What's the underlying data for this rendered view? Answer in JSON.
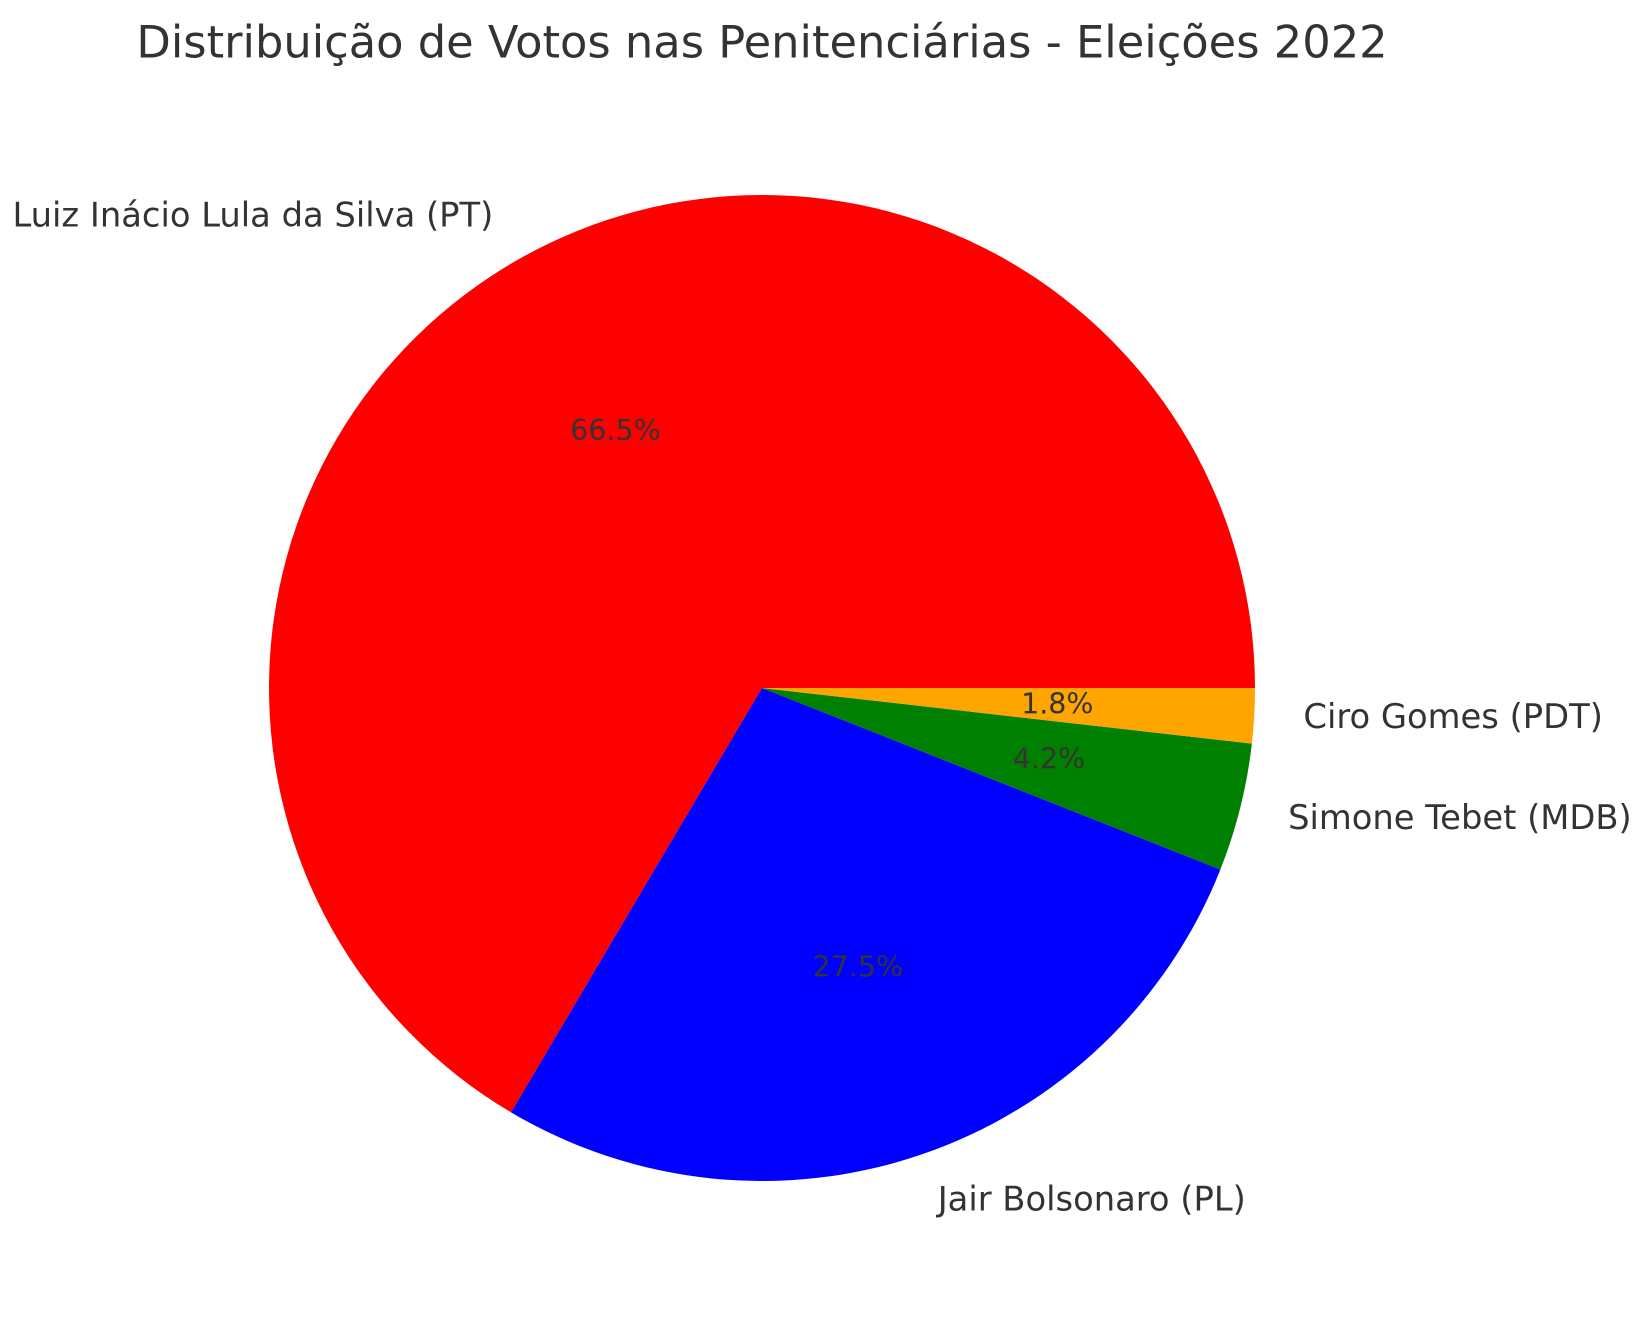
{
  "title": "Distribuição de Votos nas Penitenciárias - Eleições 2022",
  "colors": {
    "background": "#ffffff",
    "text": "#333333"
  },
  "chart_data": {
    "type": "pie",
    "title": "Distribuição de Votos nas Penitenciárias - Eleições 2022",
    "slices": [
      {
        "label": "Luiz Inácio Lula da Silva (PT)",
        "value": 66.5,
        "pct_label": "66.5%",
        "color": "#ff0000"
      },
      {
        "label": "Jair Bolsonaro (PL)",
        "value": 27.5,
        "pct_label": "27.5%",
        "color": "#0000ff"
      },
      {
        "label": "Simone Tebet (MDB)",
        "value": 4.2,
        "pct_label": "4.2%",
        "color": "#008000"
      },
      {
        "label": "Ciro Gomes (PDT)",
        "value": 1.8,
        "pct_label": "1.8%",
        "color": "#ffa500"
      }
    ],
    "start_angle_deg": 0,
    "direction": "counterclockwise",
    "label_distance": 1.1,
    "pct_distance": 0.6,
    "legend": "none",
    "grid": "off"
  }
}
